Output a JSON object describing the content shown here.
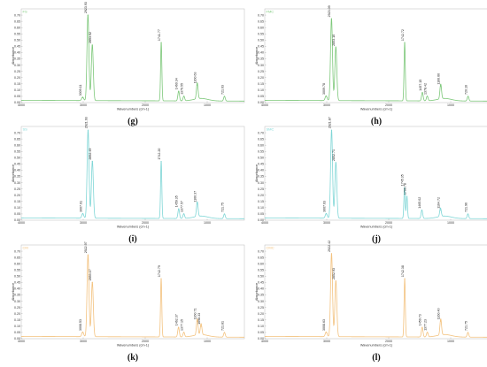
{
  "figure": {
    "x_label": "Wavenumbers (cm-1)",
    "y_label": "Absorbance",
    "x_ticks": [
      "4000",
      "3000",
      "2000",
      "1000"
    ]
  },
  "chart_data": [
    {
      "type": "line",
      "title": "FS",
      "caption": "(g)",
      "color": "#7dc87a",
      "xlabel": "Wavenumbers (cm-1)",
      "ylabel": "Absorbance",
      "xlim": [
        4000,
        400
      ],
      "ylim": [
        0,
        0.75
      ],
      "yticks": [
        "0.00",
        "0.05",
        "0.10",
        "0.15",
        "0.20",
        "0.25",
        "0.30",
        "0.35",
        "0.40",
        "0.45",
        "0.50",
        "0.55",
        "0.60",
        "0.65",
        "0.70"
      ],
      "peaks": [
        {
          "x": 3009.11,
          "y": 0.04,
          "label": "3009.11"
        },
        {
          "x": 2923.93,
          "y": 0.7,
          "label": "2923.93"
        },
        {
          "x": 2853.52,
          "y": 0.46,
          "label": "2853.52"
        },
        {
          "x": 1741.77,
          "y": 0.48,
          "label": "1741.77"
        },
        {
          "x": 1460.34,
          "y": 0.09,
          "label": "1460.34"
        },
        {
          "x": 1376.55,
          "y": 0.05,
          "label": "1376.55"
        },
        {
          "x": 1160.63,
          "y": 0.14,
          "label": "1160.63"
        },
        {
          "x": 721.63,
          "y": 0.05,
          "label": "721.63"
        }
      ]
    },
    {
      "type": "line",
      "title": "FMC",
      "caption": "(h)",
      "color": "#7dc87a",
      "xlabel": "Wavenumbers (cm-1)",
      "ylabel": "Absorbance",
      "xlim": [
        4000,
        400
      ],
      "ylim": [
        0,
        0.75
      ],
      "yticks": [
        "0.00",
        "0.05",
        "0.10",
        "0.15",
        "0.20",
        "0.25",
        "0.30",
        "0.35",
        "0.40",
        "0.45",
        "0.50",
        "0.55",
        "0.60",
        "0.65",
        "0.70"
      ],
      "peaks": [
        {
          "x": 3009.78,
          "y": 0.05,
          "label": "3009.78"
        },
        {
          "x": 2923.09,
          "y": 0.67,
          "label": "2923.09"
        },
        {
          "x": 2853.1,
          "y": 0.44,
          "label": "2853.10"
        },
        {
          "x": 1742.72,
          "y": 0.48,
          "label": "1742.72"
        },
        {
          "x": 1457.15,
          "y": 0.08,
          "label": "1457.15"
        },
        {
          "x": 1378.42,
          "y": 0.05,
          "label": "1378.42"
        },
        {
          "x": 1160.66,
          "y": 0.13,
          "label": "1160.66"
        },
        {
          "x": 720.16,
          "y": 0.05,
          "label": "720.16"
        }
      ]
    },
    {
      "type": "line",
      "title": "SS",
      "caption": "(i)",
      "color": "#7fd6d6",
      "xlabel": "Wavenumbers (cm-1)",
      "ylabel": "Absorbance",
      "xlim": [
        4000,
        400
      ],
      "ylim": [
        0,
        0.75
      ],
      "yticks": [
        "0.00",
        "0.05",
        "0.10",
        "0.15",
        "0.20",
        "0.25",
        "0.30",
        "0.35",
        "0.40",
        "0.45",
        "0.50",
        "0.55",
        "0.60",
        "0.65",
        "0.70"
      ],
      "peaks": [
        {
          "x": 3007.61,
          "y": 0.05,
          "label": "3007.61"
        },
        {
          "x": 2921.93,
          "y": 0.72,
          "label": "2921.93"
        },
        {
          "x": 2852.49,
          "y": 0.47,
          "label": "2852.49"
        },
        {
          "x": 1742.2,
          "y": 0.47,
          "label": "1742.20"
        },
        {
          "x": 1459.35,
          "y": 0.09,
          "label": "1459.35"
        },
        {
          "x": 1377.57,
          "y": 0.05,
          "label": "1377.57"
        },
        {
          "x": 1160.37,
          "y": 0.13,
          "label": "1160.37"
        },
        {
          "x": 721.75,
          "y": 0.05,
          "label": "721.75"
        }
      ]
    },
    {
      "type": "line",
      "title": "SMC",
      "caption": "(j)",
      "color": "#7fd6d6",
      "xlabel": "Wavenumbers (cm-1)",
      "ylabel": "Absorbance",
      "xlim": [
        4000,
        400
      ],
      "ylim": [
        0,
        0.75
      ],
      "yticks": [
        "0.00",
        "0.05",
        "0.10",
        "0.15",
        "0.20",
        "0.25",
        "0.30",
        "0.35",
        "0.40",
        "0.45",
        "0.50",
        "0.55",
        "0.60",
        "0.65",
        "0.70"
      ],
      "peaks": [
        {
          "x": 3007.63,
          "y": 0.05,
          "label": "3007.63"
        },
        {
          "x": 2921.87,
          "y": 0.72,
          "label": "2921.87"
        },
        {
          "x": 2852.71,
          "y": 0.46,
          "label": "2852.71"
        },
        {
          "x": 1745.35,
          "y": 0.26,
          "label": "1745.35"
        },
        {
          "x": 1706.78,
          "y": 0.19,
          "label": "1706.78"
        },
        {
          "x": 1465.02,
          "y": 0.08,
          "label": "1465.02"
        },
        {
          "x": 1164.72,
          "y": 0.08,
          "label": "1164.72"
        },
        {
          "x": 721.96,
          "y": 0.05,
          "label": "721.96"
        }
      ]
    },
    {
      "type": "line",
      "title": "CM",
      "caption": "(k)",
      "color": "#f3c27f",
      "xlabel": "Wavenumbers (cm-1)",
      "ylabel": "Absorbance",
      "xlim": [
        4000,
        400
      ],
      "ylim": [
        0,
        0.75
      ],
      "yticks": [
        "0.00",
        "0.05",
        "0.10",
        "0.15",
        "0.20",
        "0.25",
        "0.30",
        "0.35",
        "0.40",
        "0.45",
        "0.50",
        "0.55",
        "0.60",
        "0.65",
        "0.70"
      ],
      "peaks": [
        {
          "x": 3008.53,
          "y": 0.05,
          "label": "3008.53"
        },
        {
          "x": 2922.97,
          "y": 0.67,
          "label": "2922.97"
        },
        {
          "x": 2853.17,
          "y": 0.45,
          "label": "2853.17"
        },
        {
          "x": 1742.79,
          "y": 0.48,
          "label": "1742.79"
        },
        {
          "x": 1462.37,
          "y": 0.09,
          "label": "1462.37"
        },
        {
          "x": 1377.15,
          "y": 0.05,
          "label": "1377.15"
        },
        {
          "x": 1160.71,
          "y": 0.14,
          "label": "1160.71"
        },
        {
          "x": 1098.33,
          "y": 0.1,
          "label": "1098.33"
        },
        {
          "x": 721.81,
          "y": 0.05,
          "label": "721.81"
        }
      ]
    },
    {
      "type": "line",
      "title": "CMC",
      "caption": "(l)",
      "color": "#f3c27f",
      "xlabel": "Wavenumbers (cm-1)",
      "ylabel": "Absorbance",
      "xlim": [
        4000,
        400
      ],
      "ylim": [
        0,
        0.75
      ],
      "yticks": [
        "0.00",
        "0.05",
        "0.10",
        "0.15",
        "0.20",
        "0.25",
        "0.30",
        "0.35",
        "0.40",
        "0.45",
        "0.50",
        "0.55",
        "0.60",
        "0.65",
        "0.70"
      ],
      "peaks": [
        {
          "x": 3008.63,
          "y": 0.05,
          "label": "3008.63"
        },
        {
          "x": 2922.42,
          "y": 0.68,
          "label": "2922.42"
        },
        {
          "x": 2852.93,
          "y": 0.46,
          "label": "2852.93"
        },
        {
          "x": 1742.38,
          "y": 0.48,
          "label": "1742.38"
        },
        {
          "x": 1459.73,
          "y": 0.09,
          "label": "1459.73"
        },
        {
          "x": 1377.23,
          "y": 0.05,
          "label": "1377.23"
        },
        {
          "x": 1160.4,
          "y": 0.14,
          "label": "1160.40"
        },
        {
          "x": 721.75,
          "y": 0.05,
          "label": "721.75"
        }
      ]
    }
  ]
}
